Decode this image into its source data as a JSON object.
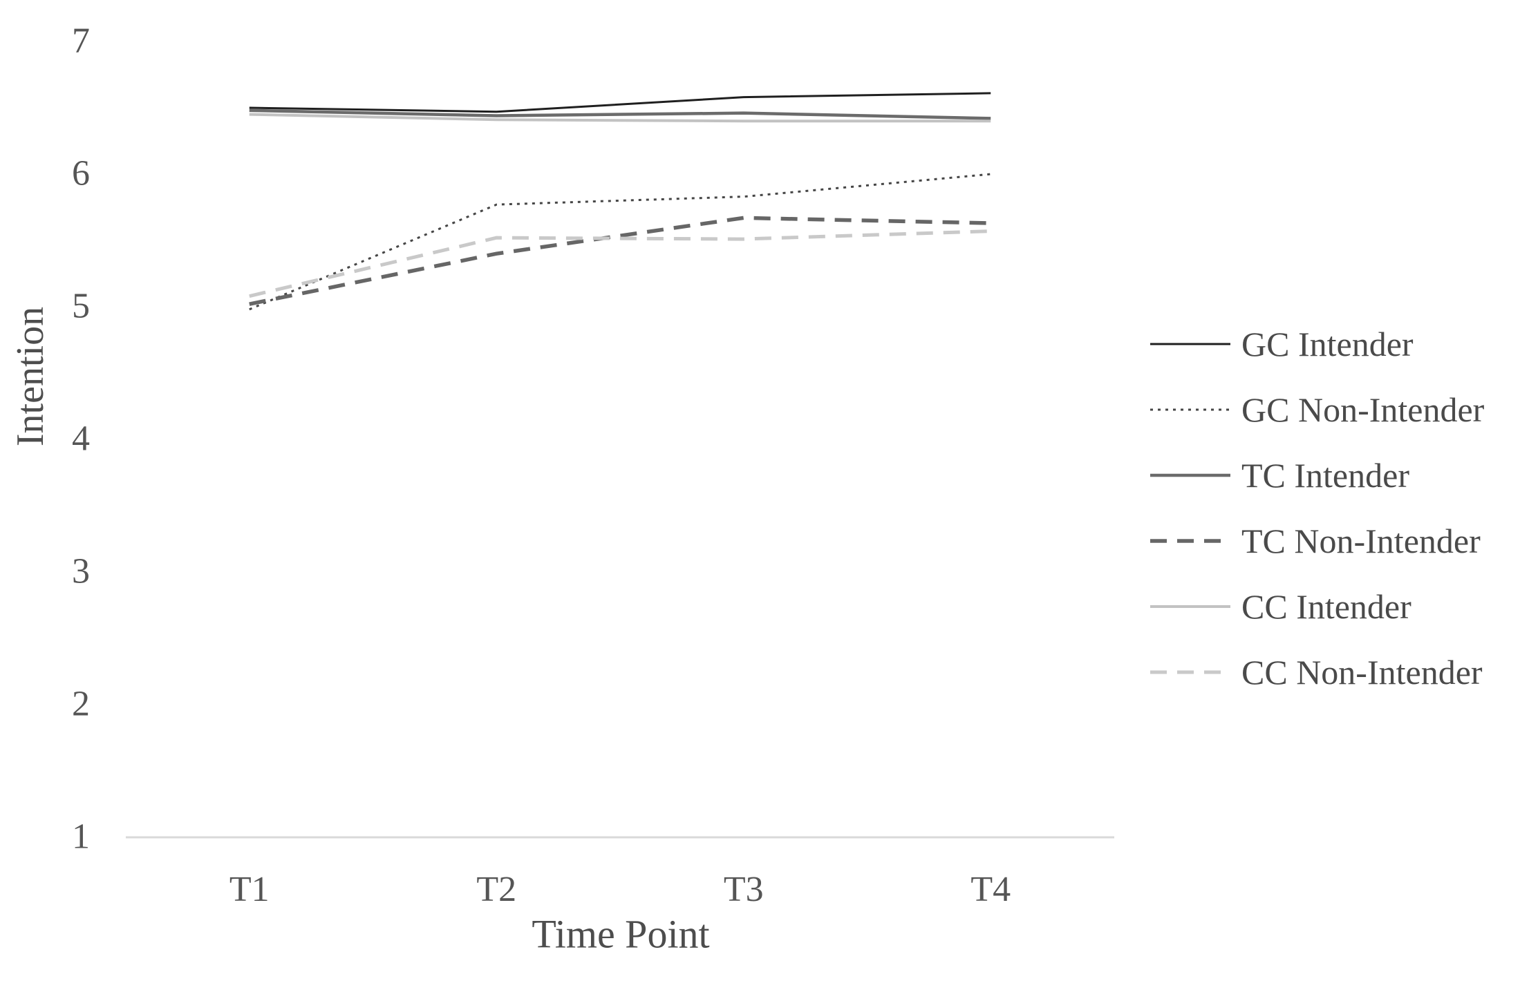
{
  "chart_data": {
    "type": "line",
    "title": "",
    "xlabel": "Time Point",
    "ylabel": "Intention",
    "x": [
      "T1",
      "T2",
      "T3",
      "T4"
    ],
    "yticks": [
      "7",
      "6",
      "5",
      "4",
      "3",
      "2",
      "1"
    ],
    "ylim": [
      1,
      7
    ],
    "grid": false,
    "legend_position": "right",
    "axis_line_color": "#d9d9d9",
    "series": [
      {
        "name": "GC Intender",
        "values": [
          6.5,
          6.47,
          6.58,
          6.61
        ],
        "line_style": "solid",
        "color": "#1f1f1f",
        "width": 3
      },
      {
        "name": "GC Non-Intender",
        "values": [
          4.98,
          5.77,
          5.83,
          6.0
        ],
        "line_style": "dotted",
        "color": "#454545",
        "width": 3
      },
      {
        "name": "TC Intender",
        "values": [
          6.48,
          6.44,
          6.46,
          6.42
        ],
        "line_style": "solid",
        "color": "#6b6b6b",
        "width": 4.5
      },
      {
        "name": "TC Non-Intender",
        "values": [
          5.02,
          5.4,
          5.67,
          5.63
        ],
        "line_style": "dashed",
        "color": "#666666",
        "width": 5.5
      },
      {
        "name": "CC Intender",
        "values": [
          6.45,
          6.41,
          6.4,
          6.4
        ],
        "line_style": "solid",
        "color": "#c2c2c2",
        "width": 4
      },
      {
        "name": "CC Non-Intender",
        "values": [
          5.08,
          5.52,
          5.51,
          5.57
        ],
        "line_style": "dashed",
        "color": "#c9c9c9",
        "width": 5
      }
    ]
  }
}
